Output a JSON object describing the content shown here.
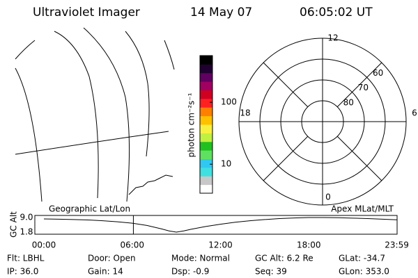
{
  "header": {
    "title": "Ultraviolet Imager",
    "date": "14 May 07",
    "time": "06:05:02 UT"
  },
  "colorbar": {
    "label": "photon cm⁻²s⁻¹",
    "scale": "log",
    "lim": [
      3.4,
      566
    ],
    "ticks": [
      10,
      100
    ],
    "colors": [
      "#ffffff",
      "#c8c8c8",
      "#40e0e0",
      "#30c8f0",
      "#60e060",
      "#20c020",
      "#c0f040",
      "#f8f040",
      "#ffc000",
      "#ff8000",
      "#ff2020",
      "#d00020",
      "#a00060",
      "#600060",
      "#200030",
      "#000000"
    ]
  },
  "polar": {
    "lat_min": 50,
    "lat_rings": [
      80,
      70,
      60
    ],
    "mlt_labels": [
      12,
      18,
      6,
      0
    ]
  },
  "orbit": {
    "left_label": "Geographic Lat/Lon",
    "right_label": "Apex MLat/MLT",
    "ylabel": "GC Alt",
    "xlim": [
      0,
      24
    ],
    "ylim": [
      1.8,
      9.0
    ],
    "yticks": [
      {
        "value": 9.0,
        "label": "9.0"
      },
      {
        "value": 1.8,
        "label": "1.8"
      }
    ],
    "xticks": [
      {
        "value": 0,
        "label": "00:00"
      },
      {
        "value": 6,
        "label": "06:00"
      },
      {
        "value": 12,
        "label": "12:00"
      },
      {
        "value": 18,
        "label": "18:00"
      },
      {
        "value": 23.98,
        "label": "23:59"
      }
    ],
    "x": [
      0,
      1,
      2,
      3,
      4,
      5,
      6,
      7,
      8,
      8.5,
      9,
      9.5,
      10,
      11,
      12,
      13,
      14,
      15,
      16,
      17,
      18,
      19,
      20,
      21,
      22,
      23,
      23.98
    ],
    "values": [
      8.3,
      8.2,
      8.0,
      7.8,
      7.4,
      6.9,
      6.2,
      5.1,
      3.4,
      2.4,
      1.8,
      2.4,
      3.2,
      4.6,
      5.7,
      6.7,
      7.4,
      8.0,
      8.5,
      8.8,
      9.0,
      9.0,
      8.9,
      8.7,
      8.5,
      8.2,
      7.9
    ],
    "current_time": 6.08
  },
  "footer": {
    "rows": [
      [
        "Flt: LBHL",
        "Door: Open",
        "Mode: Normal",
        "GC Alt: 6.2 Re",
        "GLat: -34.7"
      ],
      [
        "IP: 36.0",
        "Gain: 14",
        "Dsp:    -0.9",
        "Seq: 39",
        "GLon: 353.0"
      ]
    ]
  }
}
